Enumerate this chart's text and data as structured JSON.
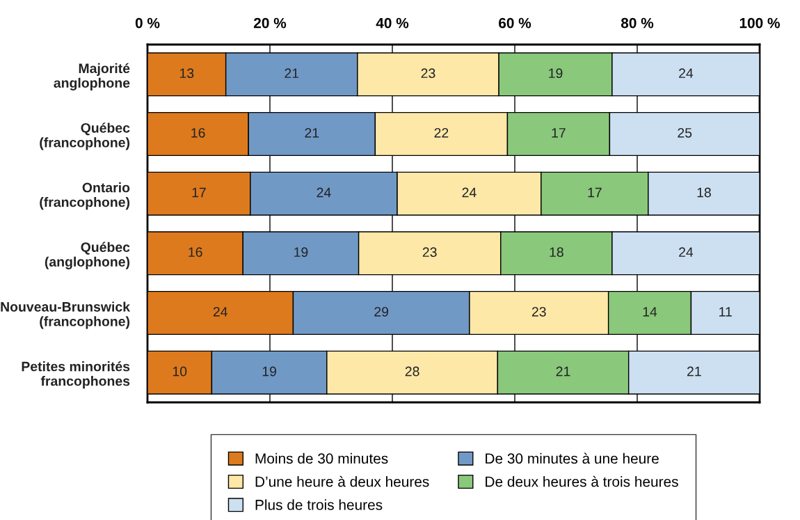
{
  "chart_data": {
    "type": "bar",
    "orientation": "horizontal",
    "stacked": true,
    "categories": [
      "Majorité\nanglophone",
      "Québec\n(francophone)",
      "Ontario\n(francophone)",
      "Québec\n(anglophone)",
      "Nouveau-Brunswick\n(francophone)",
      "Petites minorités\nfrancophones"
    ],
    "xlim": [
      0,
      100
    ],
    "xticks": [
      {
        "value": 0,
        "label": "0 %"
      },
      {
        "value": 20,
        "label": "20 %"
      },
      {
        "value": 40,
        "label": "40 %"
      },
      {
        "value": 60,
        "label": "60 %"
      },
      {
        "value": 80,
        "label": "80 %"
      },
      {
        "value": 100,
        "label": "100 %"
      }
    ],
    "grid": "x",
    "legend": "bottom",
    "series": [
      {
        "name": "Moins de 30 minutes",
        "color": "#dd7a1e",
        "values": [
          12.8,
          16.5,
          16.8,
          15.6,
          23.8,
          10.5
        ],
        "value_labels": [
          "13",
          "16",
          "17",
          "16",
          "24",
          "10"
        ]
      },
      {
        "name": "De 30 minutes à une heure",
        "color": "#7199c6",
        "values": [
          21.5,
          20.7,
          24.0,
          18.9,
          28.8,
          18.8
        ],
        "value_labels": [
          "21",
          "21",
          "24",
          "19",
          "29",
          "19"
        ]
      },
      {
        "name": "D’une heure à deux heures",
        "color": "#fde8a8",
        "values": [
          23.1,
          21.6,
          23.5,
          23.2,
          22.7,
          27.9
        ],
        "value_labels": [
          "23",
          "22",
          "24",
          "23",
          "23",
          "28"
        ]
      },
      {
        "name": "De deux heures à trois heures",
        "color": "#8ac87c",
        "values": [
          18.5,
          16.7,
          17.5,
          18.2,
          13.5,
          21.4
        ],
        "value_labels": [
          "19",
          "17",
          "17",
          "18",
          "14",
          "21"
        ]
      },
      {
        "name": "Plus de trois heures",
        "color": "#cde0f2",
        "values": [
          24.1,
          24.5,
          18.2,
          24.1,
          11.2,
          21.4
        ],
        "value_labels": [
          "24",
          "25",
          "18",
          "24",
          "11",
          "21"
        ]
      }
    ]
  }
}
